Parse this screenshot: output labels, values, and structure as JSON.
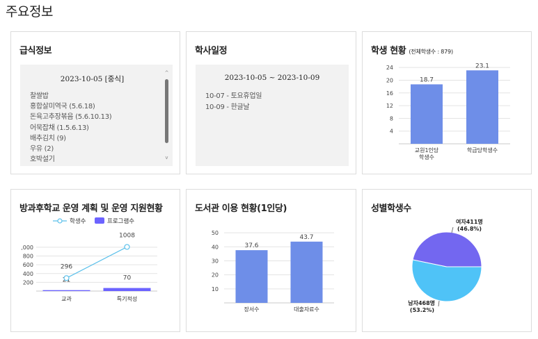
{
  "page": {
    "title": "주요정보"
  },
  "meal": {
    "title": "급식정보",
    "date_label": "2023-10-05 [중식]",
    "items": [
      "찰쌀밥",
      "홍합살미역국 (5.6.18)",
      "돈육고추장볶음 (5.6.10.13)",
      "어묵잡채 (1.5.6.13)",
      "배추김치 (9)",
      "우유 (2)",
      "호박설기"
    ],
    "scroll": {
      "up": "^",
      "down": "v"
    }
  },
  "schedule": {
    "title": "학사일정",
    "date_range": "2023-10-05 ~ 2023-10-09",
    "items": [
      "10-07 - 토요휴업일",
      "10-09 - 한글날"
    ]
  },
  "students": {
    "title": "학생 현황",
    "subtitle": "(전체학생수 : 879)",
    "chart_data": {
      "type": "bar",
      "categories": [
        "교원1인당\n학생수",
        "학급당학생수"
      ],
      "values": [
        18.7,
        23.1
      ],
      "ylim": [
        0,
        26
      ],
      "yticks": [
        4,
        8,
        12,
        16,
        20,
        24
      ],
      "grid": true,
      "color": "#6e8ee8"
    }
  },
  "afterschool": {
    "title": "방과후학교 운영 계획 및 운영 지원현황",
    "chart_data": {
      "type": "bar",
      "categories": [
        "교과",
        "특기적성"
      ],
      "series": [
        {
          "name": "학생수",
          "type": "line",
          "values": [
            296,
            1008
          ],
          "color": "#5bc0eb"
        },
        {
          "name": "프로그램수",
          "type": "bar",
          "values": [
            21,
            70
          ],
          "color": "#6c63ff"
        }
      ],
      "ylim": [
        0,
        1300
      ],
      "yticks": [
        200,
        400,
        600,
        800,
        ",000"
      ],
      "grid": true
    }
  },
  "library": {
    "title": "도서관 이용 현황(1인당)",
    "chart_data": {
      "type": "bar",
      "categories": [
        "장서수",
        "대출자료수"
      ],
      "values": [
        37.6,
        43.7
      ],
      "ylim": [
        0,
        56
      ],
      "yticks": [
        10,
        20,
        30,
        40,
        50
      ],
      "grid": true,
      "color": "#6e8ee8"
    }
  },
  "gender": {
    "title": "성별학생수",
    "chart_data": {
      "type": "pie",
      "slices": [
        {
          "label": "여자411명",
          "pct": "(46.8%)",
          "value": 411,
          "color": "#7367f0"
        },
        {
          "label": "남자468명",
          "pct": "(53.2%)",
          "value": 468,
          "color": "#4fc3f7"
        }
      ]
    }
  }
}
